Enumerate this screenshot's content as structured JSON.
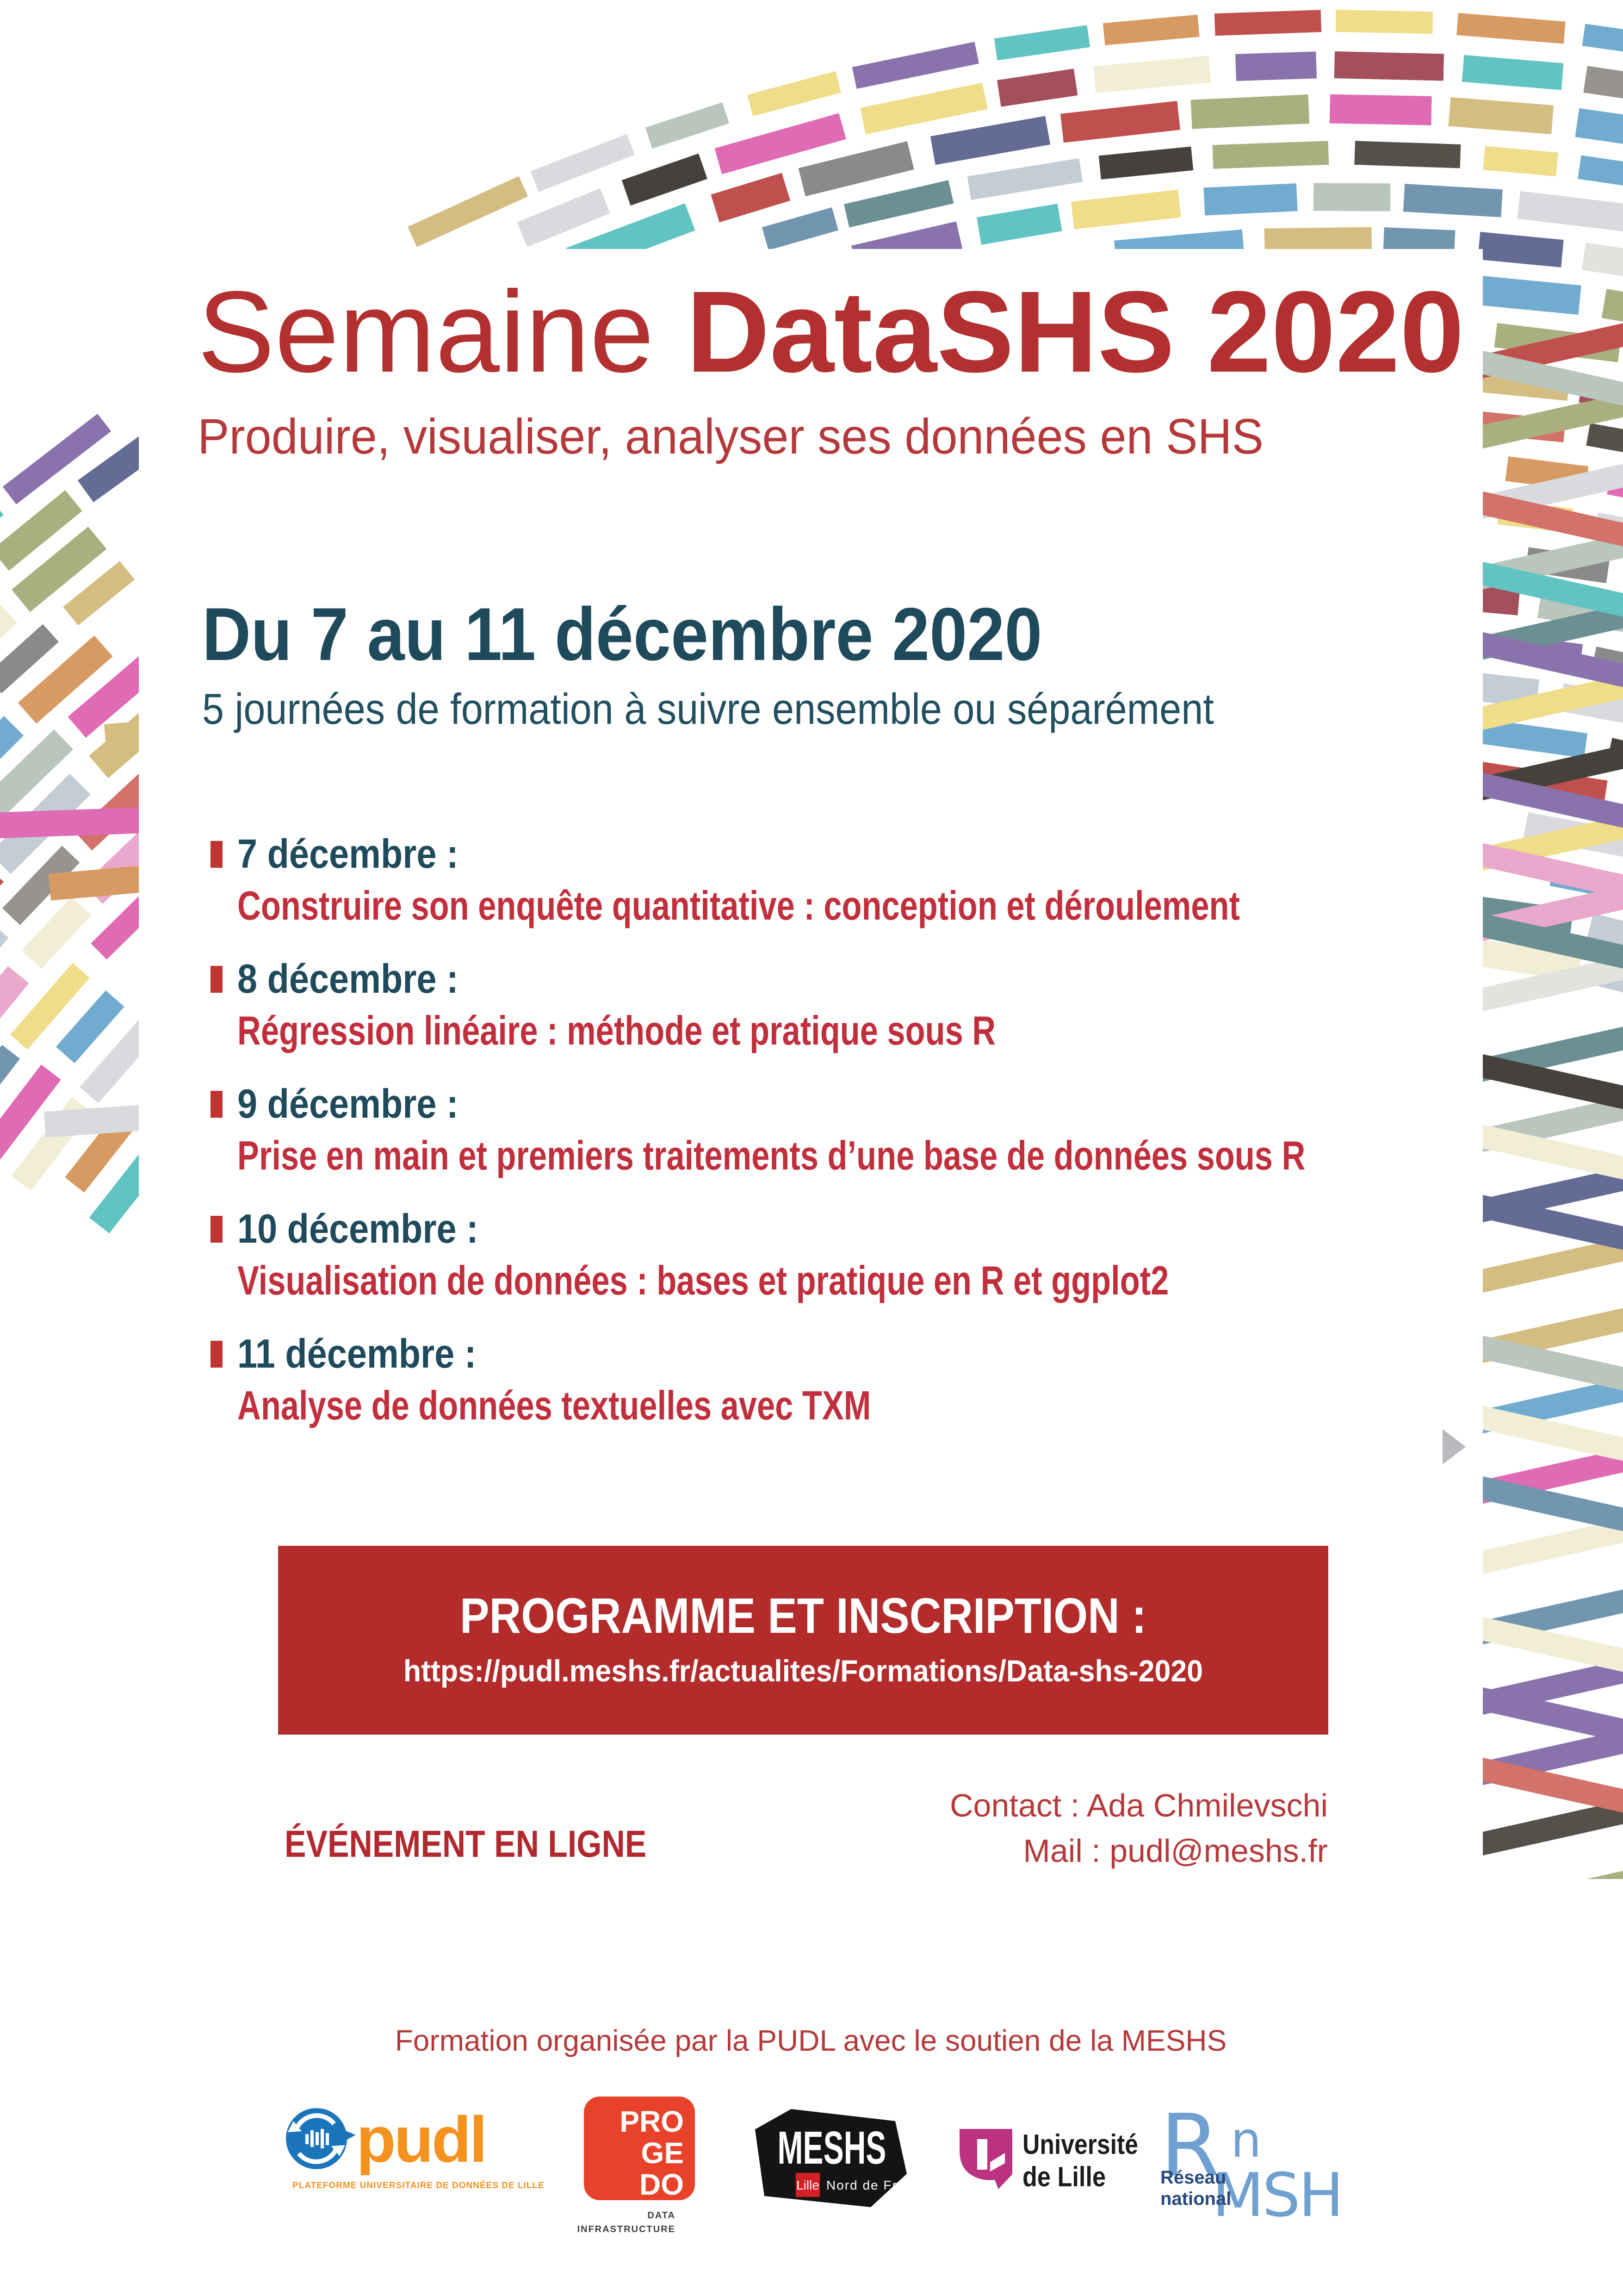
{
  "poster": {
    "title": {
      "light": "Semaine ",
      "bold": "DataSHS 2020"
    },
    "subtitle": "Produire, visualiser, analyser ses données en SHS",
    "dates_heading": "Du 7 au 11 décembre 2020",
    "dates_sub": "5 journées de formation à suivre ensemble ou séparément",
    "sessions": [
      {
        "date": "7 décembre :",
        "topic": "Construire son enquête quantitative : conception et déroulement"
      },
      {
        "date": "8 décembre :",
        "topic": "Régression linéaire : méthode et pratique sous R"
      },
      {
        "date": "9 décembre :",
        "topic": "Prise en main et premiers traitements d’une base de données sous R"
      },
      {
        "date": "10 décembre :",
        "topic": "Visualisation de données : bases et pratique en R et ggplot2"
      },
      {
        "date": "11 décembre :",
        "topic": "Analyse de données textuelles avec TXM"
      }
    ],
    "banner": {
      "title": "PROGRAMME ET INSCRIPTION :",
      "url": "https://pudl.meshs.fr/actualites/Formations/Data-shs-2020"
    },
    "event_mode": "ÉVÉNEMENT EN LIGNE",
    "contact_line1": "Contact : Ada Chmilevschi",
    "contact_line2": "Mail : pudl@meshs.fr",
    "footer_note": "Formation organisée par la PUDL avec le soutien de la MESHS",
    "logos": {
      "pudl": {
        "name": "pudl",
        "tagline": "PLATEFORME UNIVERSITAIRE DE DONNÉES DE LILLE"
      },
      "progedo": {
        "line1": "PRO",
        "line2": "GE",
        "line3": "DO",
        "tagline_line1": "DATA",
        "tagline_line2": "INFRASTRUCTURE"
      },
      "meshs": {
        "name": "MESHS",
        "city": "Lille",
        "region": "Nord de France"
      },
      "univ_lille": {
        "line1": "Université",
        "line2": "de Lille"
      },
      "rnmsh": {
        "r": "R",
        "n": "n",
        "acronym": "MSH",
        "label1": "Réseau",
        "label2": "national"
      }
    },
    "colors": {
      "red_primary": "#b2302f",
      "red_topic": "#c12f3d",
      "teal_dark": "#1f4a5c",
      "banner_bg": "#b32b2b",
      "banner_text": "#ffffff",
      "bullet_red": "#bf3430",
      "pudl_blue": "#1b75bb",
      "pudl_orange": "#f5911e",
      "progedo_orange": "#e8432a",
      "meshs_black": "#161412",
      "meshs_red": "#d41f26",
      "univ_magenta": "#bb3380",
      "rnmsh_blue": "#6096cc",
      "rnmsh_dark": "#27477e",
      "chevron_gray": "#b9b9be"
    },
    "decor_palette": [
      "#d2726a",
      "#b9c6bd",
      "#7396b0",
      "#8a72ad",
      "#55504a",
      "#646b94",
      "#d3bd81",
      "#97948f",
      "#62c4c2",
      "#72abd0",
      "#d9dadd",
      "#f2eed6",
      "#d79a62",
      "#a34f5c",
      "#e9a8cc",
      "#f0dd8a",
      "#c3cdd6",
      "#a9af7e",
      "#e2e3de",
      "#6b8f93",
      "#e06bb5",
      "#c0504d",
      "#8a8a8a",
      "#46413c"
    ]
  }
}
